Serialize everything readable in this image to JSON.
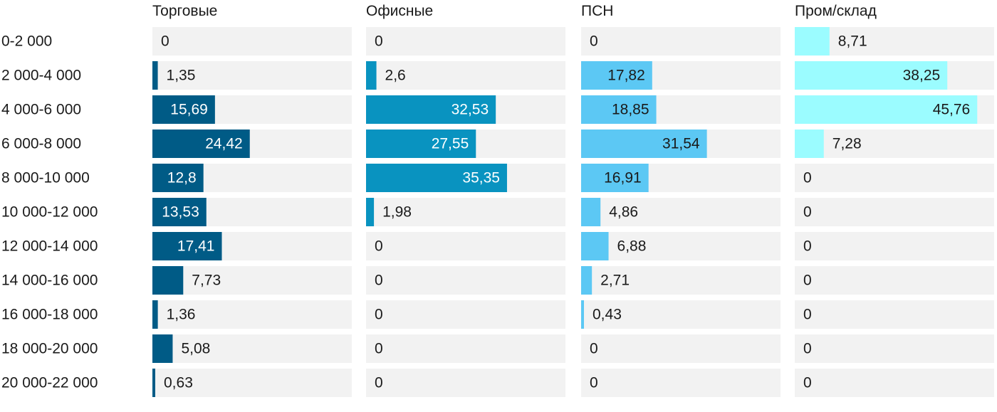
{
  "chart_data": {
    "type": "bar",
    "orientation": "horizontal",
    "layout": "small-multiples",
    "title": "",
    "xlabel": "",
    "ylabel": "",
    "xlim": [
      0,
      50
    ],
    "grid": false,
    "legend": "none",
    "categories": [
      "0-2 000",
      "2 000-4 000",
      "4 000-6 000",
      "6 000-8 000",
      "8 000-10 000",
      "10 000-12 000",
      "12 000-14 000",
      "14 000-16 000",
      "16 000-18 000",
      "18 000-20 000",
      "20 000-22 000"
    ],
    "series": [
      {
        "name": "Торговые",
        "color": "#005b86",
        "values": [
          0,
          1.35,
          15.69,
          24.42,
          12.8,
          13.53,
          17.41,
          7.73,
          1.36,
          5.08,
          0.63
        ],
        "labels": [
          "0",
          "1,35",
          "15,69",
          "24,42",
          "12,8",
          "13,53",
          "17,41",
          "7,73",
          "1,36",
          "5,08",
          "0,63"
        ]
      },
      {
        "name": "Офисные",
        "color": "#0993c0",
        "values": [
          0,
          2.6,
          32.53,
          27.55,
          35.35,
          1.98,
          0,
          0,
          0,
          0,
          0
        ],
        "labels": [
          "0",
          "2,6",
          "32,53",
          "27,55",
          "35,35",
          "1,98",
          "0",
          "0",
          "0",
          "0",
          "0"
        ]
      },
      {
        "name": "ПСН",
        "color": "#5cc8f4",
        "values": [
          0,
          17.82,
          18.85,
          31.54,
          16.91,
          4.86,
          6.88,
          2.71,
          0.43,
          0,
          0
        ],
        "labels": [
          "0",
          "17,82",
          "18,85",
          "31,54",
          "16,91",
          "4,86",
          "6,88",
          "2,71",
          "0,43",
          "0",
          "0"
        ]
      },
      {
        "name": "Пром/склад",
        "color": "#9bfcff",
        "values": [
          8.71,
          38.25,
          45.76,
          7.28,
          0,
          0,
          0,
          0,
          0,
          0,
          0
        ],
        "labels": [
          "8,71",
          "38,25",
          "45,76",
          "7,28",
          "0",
          "0",
          "0",
          "0",
          "0",
          "0",
          "0"
        ]
      }
    ]
  }
}
